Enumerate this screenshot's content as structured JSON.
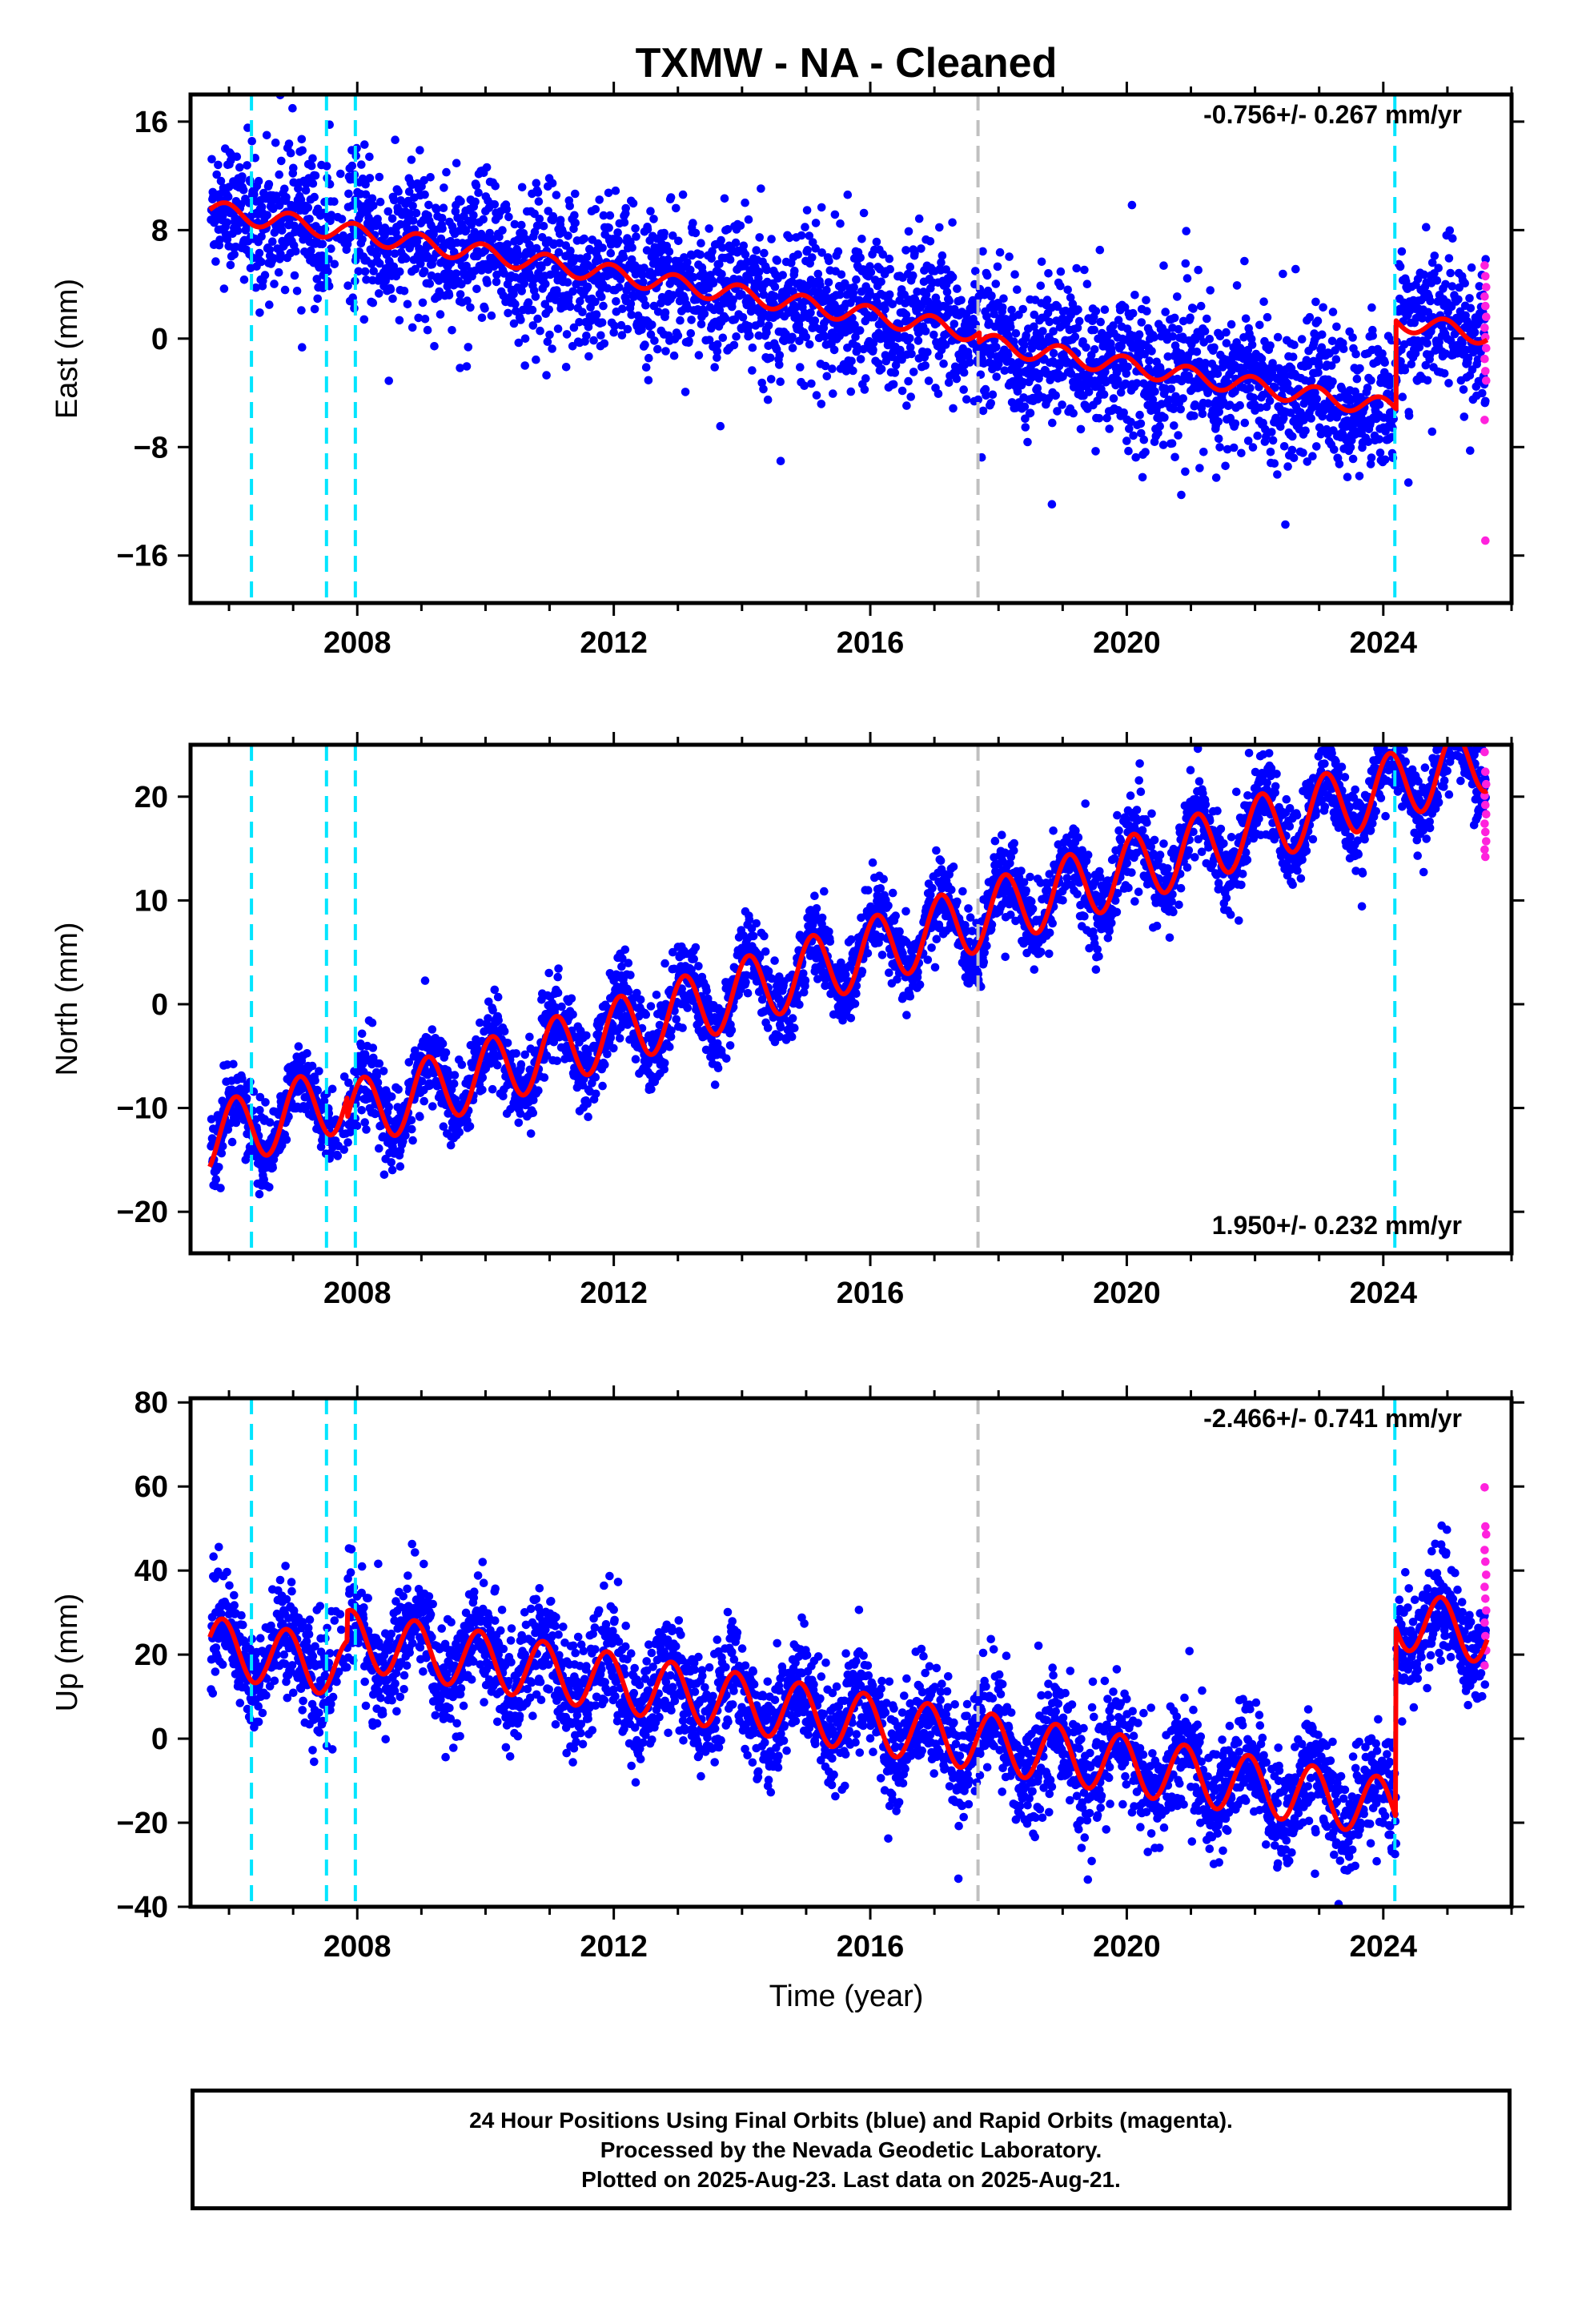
{
  "title": "TXMW  - NA - Cleaned",
  "xlabel": "Time (year)",
  "footer": {
    "line1": "24 Hour Positions Using Final Orbits (blue) and Rapid Orbits (magenta).",
    "line2": "Processed by the Nevada Geodetic Laboratory.",
    "line3": "Plotted on 2025-Aug-23. Last data on 2025-Aug-21."
  },
  "colors": {
    "final_orbits": "#0000ff",
    "rapid_orbits": "#ff22dd",
    "model": "#ff0000",
    "equipment_change": "#00e5ff",
    "earthquake": "#c0c0c0"
  },
  "chart_data": [
    {
      "type": "scatter",
      "component": "East",
      "ylabel": "East (mm)",
      "rate_label": "-0.756+/- 0.267 mm/yr",
      "rate_label_position": "top-right",
      "xlim": [
        2005.4,
        2026.0
      ],
      "ylim": [
        -19.5,
        18
      ],
      "xticks": [
        2008,
        2012,
        2016,
        2020,
        2024
      ],
      "yticks": [
        16,
        8,
        0,
        -8,
        -16
      ],
      "ytick_labels": [
        "16",
        "8",
        "0",
        "−8",
        "−16"
      ],
      "model": {
        "breaks": [
          {
            "t0": 2005.7,
            "t1": 2017.7,
            "intercept": 9.5
          },
          {
            "t0": 2017.7,
            "t1": 2024.2,
            "intercept": 8.8
          },
          {
            "t0": 2024.2,
            "t1": 2025.62,
            "intercept": 15.3
          }
        ],
        "rate": -0.756,
        "annual_amp": 0.7,
        "annual_phase": 0.3
      },
      "scatter_noise_mm": 2.6,
      "scatter_excursion_mm": 4.5,
      "rapid_points": [
        5.4,
        4.6,
        3.8,
        3.1,
        2.4,
        1.6,
        0.8,
        0.1,
        -0.7,
        -1.5,
        -2.4,
        -3.1,
        -6.0,
        -14.9
      ]
    },
    {
      "type": "scatter",
      "component": "North",
      "ylabel": "North (mm)",
      "rate_label": "1.950+/- 0.232 mm/yr",
      "rate_label_position": "bottom-right",
      "xlim": [
        2005.4,
        2026.0
      ],
      "ylim": [
        -24,
        25
      ],
      "xticks": [
        2008,
        2012,
        2016,
        2020,
        2024
      ],
      "yticks": [
        20,
        10,
        0,
        -10,
        -20
      ],
      "ytick_labels": [
        "20",
        "10",
        "0",
        "−10",
        "−20"
      ],
      "model": {
        "breaks": [
          {
            "t0": 2005.7,
            "t1": 2007.85,
            "intercept": -13.0
          },
          {
            "t0": 2007.85,
            "t1": 2017.7,
            "intercept": -15.0
          },
          {
            "t0": 2017.7,
            "t1": 2025.62,
            "intercept": -15.0
          }
        ],
        "rate": 1.95,
        "annual_amp": 3.3,
        "annual_phase": 0.15
      },
      "scatter_noise_mm": 1.9,
      "scatter_excursion_mm": 3.0,
      "rapid_points": [
        24.3,
        22.4,
        21.2,
        20.1,
        19.2,
        18.3,
        17.4,
        16.6,
        15.7,
        14.9,
        14.2
      ]
    },
    {
      "type": "scatter",
      "component": "Up",
      "ylabel": "Up (mm)",
      "rate_label": "-2.466+/- 0.741 mm/yr",
      "rate_label_position": "top-right",
      "xlim": [
        2005.4,
        2026.0
      ],
      "ylim": [
        -40,
        81
      ],
      "xticks": [
        2008,
        2012,
        2016,
        2020,
        2024
      ],
      "yticks": [
        80,
        60,
        40,
        20,
        0,
        -20,
        -40
      ],
      "ytick_labels": [
        "80",
        "60",
        "40",
        "20",
        "0",
        "−20",
        "−40"
      ],
      "model": {
        "breaks": [
          {
            "t0": 2005.7,
            "t1": 2007.85,
            "intercept": 22.0
          },
          {
            "t0": 2007.85,
            "t1": 2024.2,
            "intercept": 29.0
          },
          {
            "t0": 2024.2,
            "t1": 2025.62,
            "intercept": 74.0
          }
        ],
        "rate": -2.466,
        "annual_amp": 7.0,
        "annual_phase": 0.35
      },
      "scatter_noise_mm": 6.5,
      "scatter_excursion_mm": 10.0,
      "rapid_points": [
        59.8,
        50.5,
        48.6,
        44.9,
        42.1,
        39.0,
        36.1,
        33.3,
        30.5,
        27.6,
        24.4,
        21.0,
        17.4
      ]
    }
  ],
  "event_lines": {
    "equipment": [
      2006.35,
      2007.52,
      2007.97,
      2024.18
    ],
    "earthquake": [
      2017.68
    ]
  }
}
